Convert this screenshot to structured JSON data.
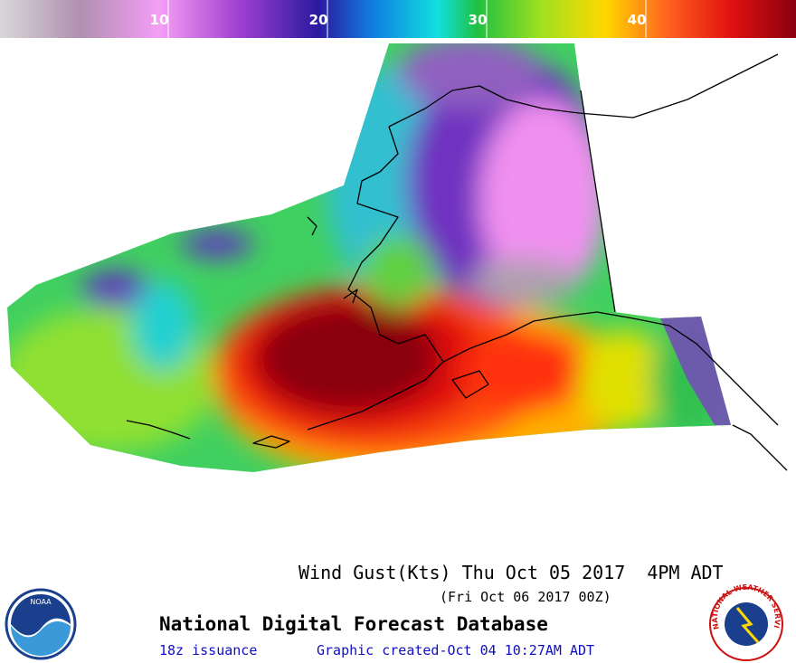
{
  "colorbar": {
    "range": [
      0,
      50
    ],
    "ticks": [
      10,
      20,
      30,
      40
    ]
  },
  "title": "Wind Gust(Kts) Thu Oct 05 2017  4PM ADT",
  "subtitle": "(Fri Oct 06 2017 00Z)",
  "product": "National Digital Forecast Database",
  "issuance": "18z issuance",
  "created": "Graphic created-Oct 04 10:27AM ADT",
  "logos": {
    "left": "NOAA",
    "right": "NATIONAL WEATHER SERVICE"
  }
}
